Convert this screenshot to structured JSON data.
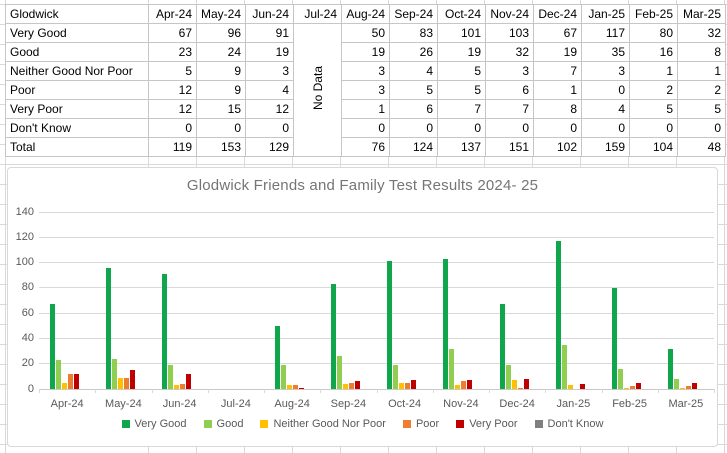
{
  "table": {
    "corner_label": "Glodwick",
    "months": [
      "Apr-24",
      "May-24",
      "Jun-24",
      "Jul-24",
      "Aug-24",
      "Sep-24",
      "Oct-24",
      "Nov-24",
      "Dec-24",
      "Jan-25",
      "Feb-25",
      "Mar-25"
    ],
    "no_data_label": "No Data",
    "no_data_month": "Jul-24",
    "rows": [
      {
        "label": "Very Good",
        "values": [
          67,
          96,
          91,
          null,
          50,
          83,
          101,
          103,
          67,
          117,
          80,
          32
        ]
      },
      {
        "label": "Good",
        "values": [
          23,
          24,
          19,
          null,
          19,
          26,
          19,
          32,
          19,
          35,
          16,
          8
        ]
      },
      {
        "label": "Neither Good Nor Poor",
        "values": [
          5,
          9,
          3,
          null,
          3,
          4,
          5,
          3,
          7,
          3,
          1,
          1
        ]
      },
      {
        "label": "Poor",
        "values": [
          12,
          9,
          4,
          null,
          3,
          5,
          5,
          6,
          1,
          0,
          2,
          2
        ]
      },
      {
        "label": "Very Poor",
        "values": [
          12,
          15,
          12,
          null,
          1,
          6,
          7,
          7,
          8,
          4,
          5,
          5
        ]
      },
      {
        "label": "Don't Know",
        "values": [
          0,
          0,
          0,
          null,
          0,
          0,
          0,
          0,
          0,
          0,
          0,
          0
        ]
      },
      {
        "label": "Total",
        "values": [
          119,
          153,
          129,
          null,
          76,
          124,
          137,
          151,
          102,
          159,
          104,
          48
        ]
      }
    ]
  },
  "chart_data": {
    "type": "bar",
    "title": "Glodwick Friends and Family Test Results 2024- 25",
    "categories": [
      "Apr-24",
      "May-24",
      "Jun-24",
      "Jul-24",
      "Aug-24",
      "Sep-24",
      "Oct-24",
      "Nov-24",
      "Dec-24",
      "Jan-25",
      "Feb-25",
      "Mar-25"
    ],
    "series": [
      {
        "name": "Very Good",
        "color": "#10a64c",
        "values": [
          67,
          96,
          91,
          0,
          50,
          83,
          101,
          103,
          67,
          117,
          80,
          32
        ]
      },
      {
        "name": "Good",
        "color": "#90ce4f",
        "values": [
          23,
          24,
          19,
          0,
          19,
          26,
          19,
          32,
          19,
          35,
          16,
          8
        ]
      },
      {
        "name": "Neither Good Nor Poor",
        "color": "#ffc000",
        "values": [
          5,
          9,
          3,
          0,
          3,
          4,
          5,
          3,
          7,
          3,
          1,
          1
        ]
      },
      {
        "name": "Poor",
        "color": "#ed7d31",
        "values": [
          12,
          9,
          4,
          0,
          3,
          5,
          5,
          6,
          1,
          0,
          2,
          2
        ]
      },
      {
        "name": "Very Poor",
        "color": "#c00000",
        "values": [
          12,
          15,
          12,
          0,
          1,
          6,
          7,
          7,
          8,
          4,
          5,
          5
        ]
      },
      {
        "name": "Don't Know",
        "color": "#7f7f7f",
        "values": [
          0,
          0,
          0,
          0,
          0,
          0,
          0,
          0,
          0,
          0,
          0,
          0
        ]
      }
    ],
    "ylim": [
      0,
      140
    ],
    "ytick_step": 20,
    "grid": true,
    "legend_position": "bottom",
    "no_data_categories": [
      "Jul-24"
    ]
  },
  "colors": {
    "sheet_gridline": "#d9d9d9",
    "table_border": "#c6c6c6",
    "chart_text": "#595959",
    "title_text": "#757575"
  }
}
